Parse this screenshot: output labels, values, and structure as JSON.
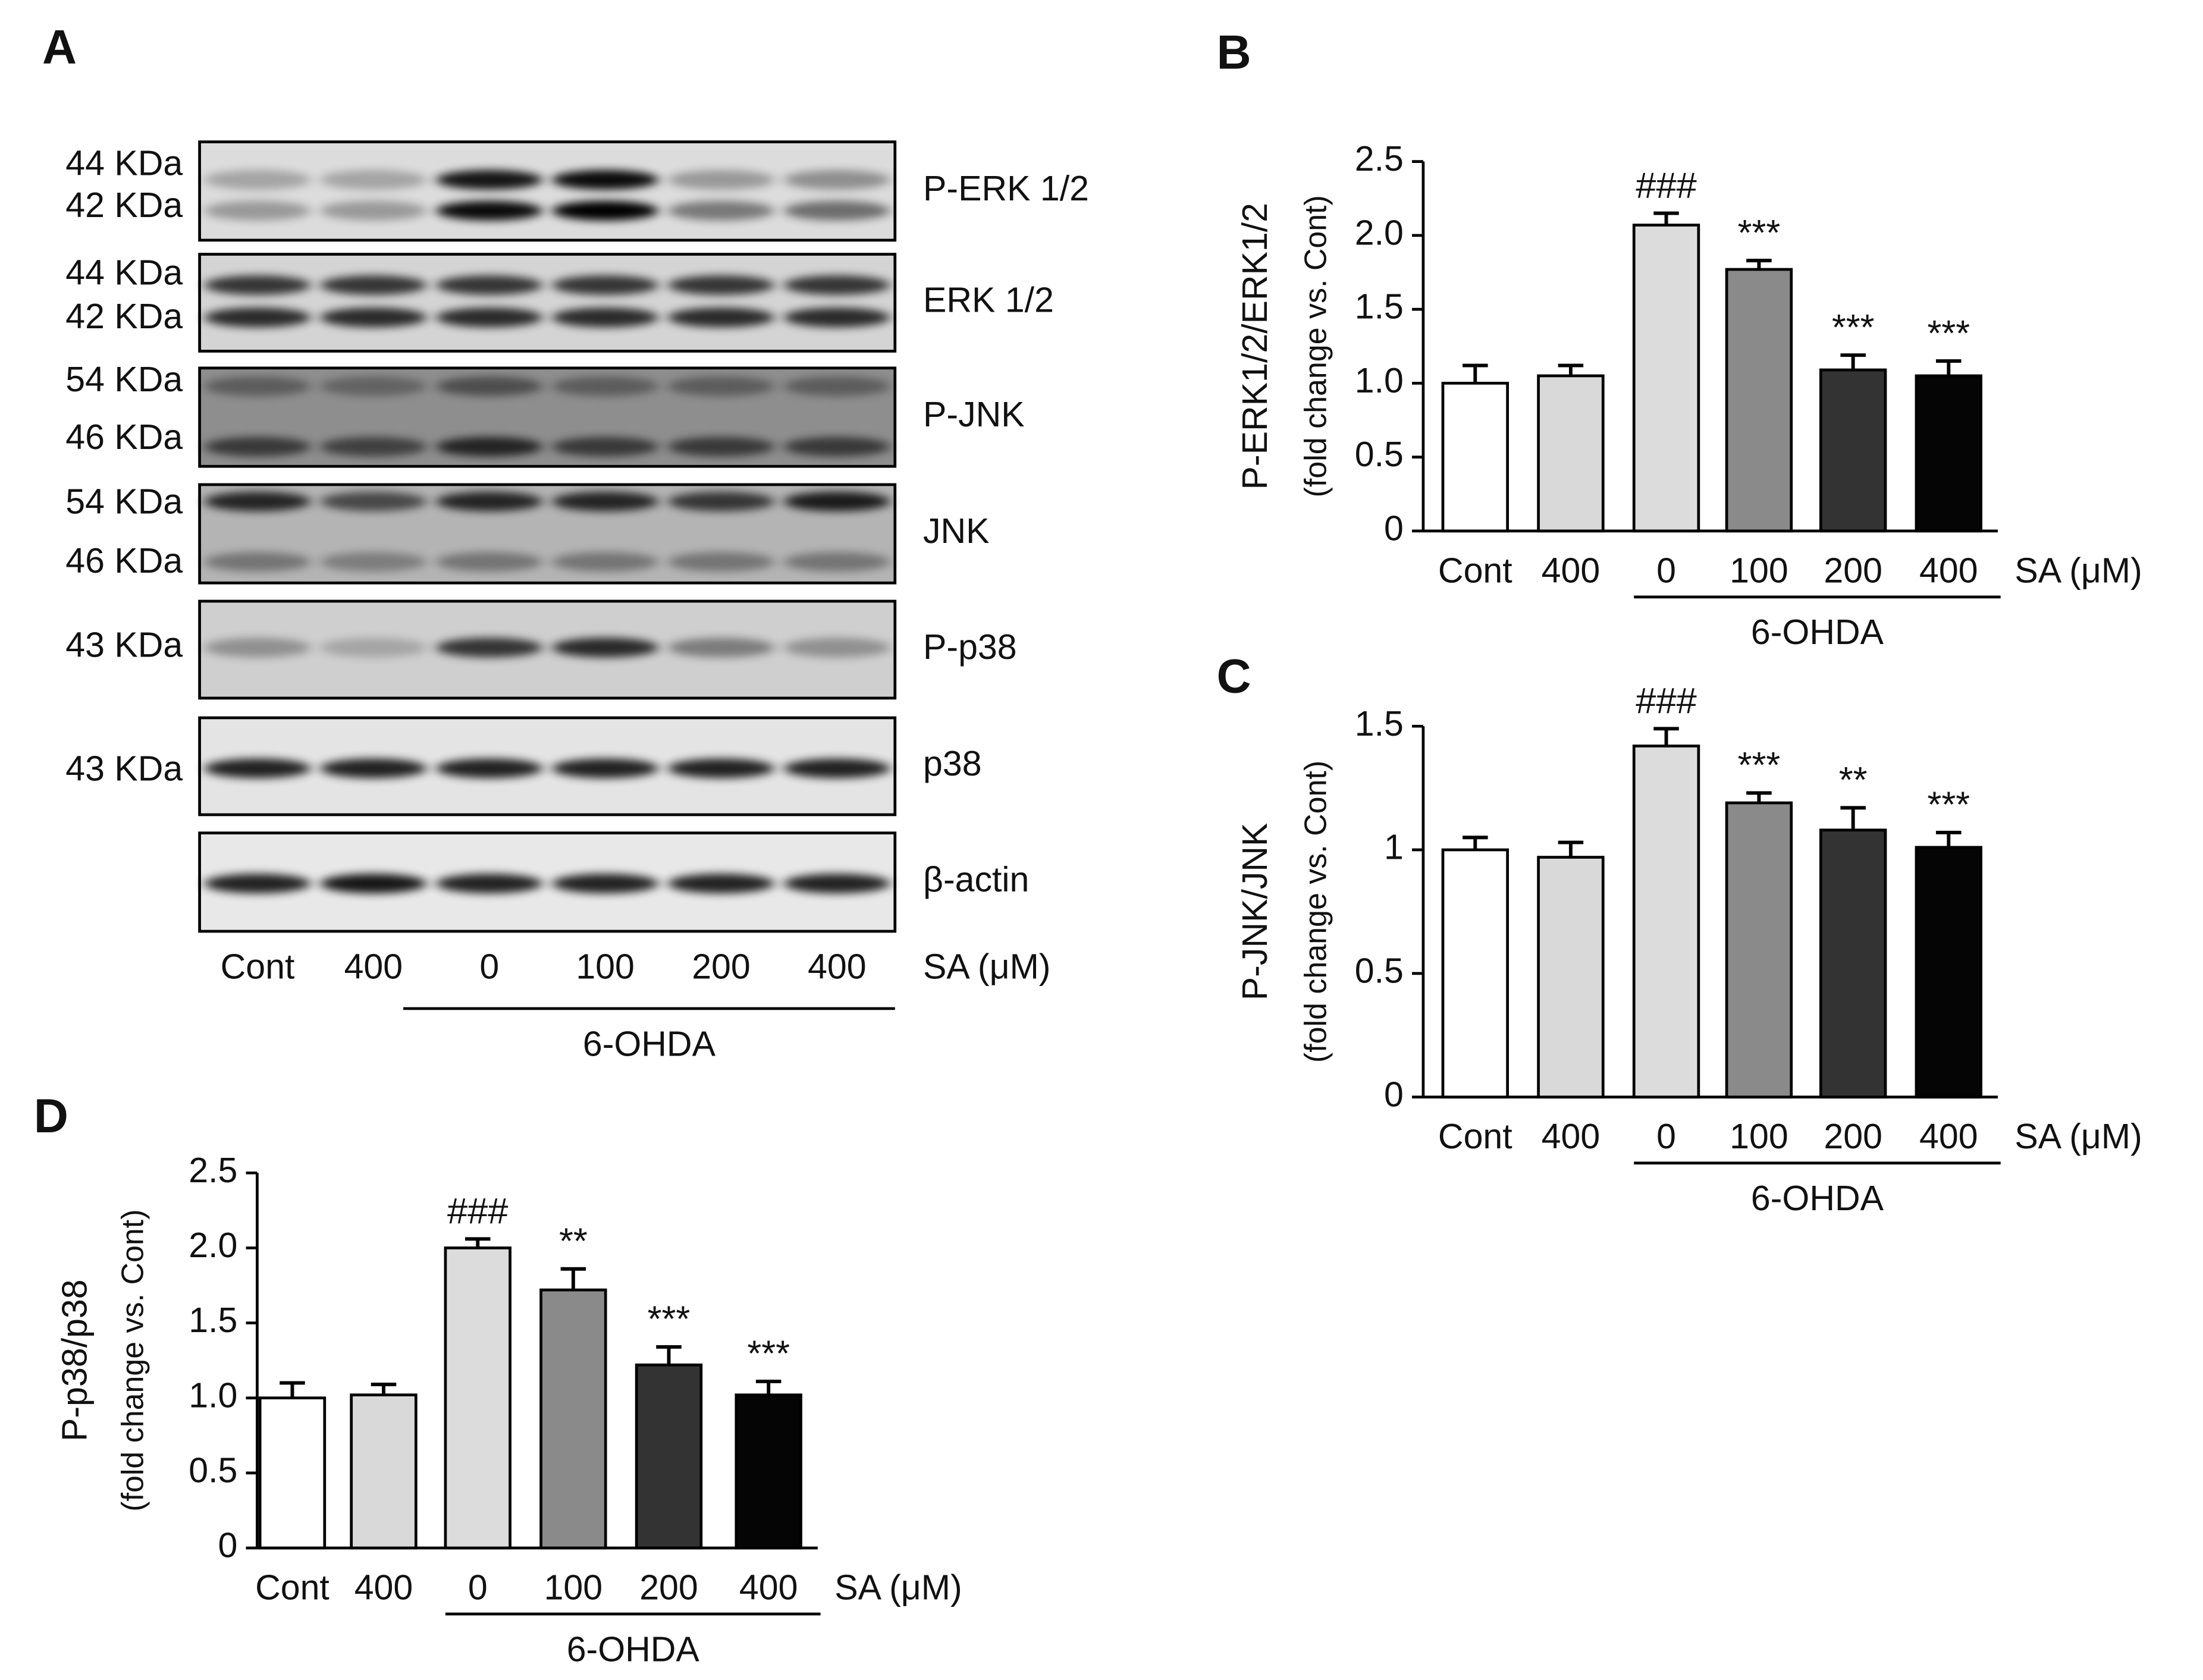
{
  "blot": {
    "panel_label": "A",
    "rows": [
      {
        "kda": [
          "44 KDa",
          "42 KDa"
        ],
        "label": "P-ERK 1/2"
      },
      {
        "kda": [
          "44 KDa",
          "42 KDa"
        ],
        "label": "ERK 1/2"
      },
      {
        "kda": [
          "54 KDa",
          "46 KDa"
        ],
        "label": "P-JNK"
      },
      {
        "kda": [
          "54 KDa",
          "46 KDa"
        ],
        "label": "JNK"
      },
      {
        "kda": [
          "43 KDa"
        ],
        "label": "P-p38"
      },
      {
        "kda": [
          "43 KDa"
        ],
        "label": "p38"
      },
      {
        "kda": [],
        "label": "β-actin"
      }
    ],
    "lanes": [
      "Cont",
      "400",
      "0",
      "100",
      "200",
      "400"
    ],
    "xlabel": "SA (μM)",
    "group_label": "6-OHDA"
  },
  "chart_data": [
    {
      "type": "bar",
      "panel_label": "B",
      "ylabel": [
        "P-ERK1/2/ERK1/2",
        "(fold change vs. Cont)"
      ],
      "categories": [
        "Cont",
        "400",
        "0",
        "100",
        "200",
        "400"
      ],
      "xlabel": "SA (μM)",
      "group_label": "6-OHDA",
      "values": [
        1.0,
        1.05,
        2.07,
        1.77,
        1.09,
        1.05
      ],
      "errors": [
        0.12,
        0.07,
        0.08,
        0.06,
        0.1,
        0.1
      ],
      "colors": [
        "#ffffff",
        "#d9d9d9",
        "#dcdcdc",
        "#8a8a8a",
        "#333333",
        "#050505"
      ],
      "bar_annotations": [
        null,
        null,
        "###",
        "***",
        "***",
        "***"
      ],
      "ylim": [
        0,
        2.5
      ],
      "yticks": [
        0,
        0.5,
        {
          "value": 1,
          "label": "1.0"
        },
        1.5,
        {
          "value": 2,
          "label": "2.0"
        },
        2.5
      ]
    },
    {
      "type": "bar",
      "panel_label": "C",
      "ylabel": [
        "P-JNK/JNK",
        "(fold change vs. Cont)"
      ],
      "categories": [
        "Cont",
        "400",
        "0",
        "100",
        "200",
        "400"
      ],
      "xlabel": "SA (μM)",
      "group_label": "6-OHDA",
      "values": [
        1.0,
        0.97,
        1.42,
        1.19,
        1.08,
        1.01
      ],
      "errors": [
        0.05,
        0.06,
        0.07,
        0.04,
        0.09,
        0.06
      ],
      "colors": [
        "#ffffff",
        "#d9d9d9",
        "#dcdcdc",
        "#8a8a8a",
        "#333333",
        "#050505"
      ],
      "bar_annotations": [
        null,
        null,
        "###",
        "***",
        "**",
        "***"
      ],
      "ylim": [
        0,
        1.5
      ],
      "yticks": [
        0,
        0.5,
        1,
        1.5
      ]
    },
    {
      "type": "bar",
      "panel_label": "D",
      "ylabel": [
        "P-p38/p38",
        "(fold change vs. Cont)"
      ],
      "categories": [
        "Cont",
        "400",
        "0",
        "100",
        "200",
        "400"
      ],
      "xlabel": "SA (μM)",
      "group_label": "6-OHDA",
      "values": [
        1.0,
        1.02,
        2.0,
        1.72,
        1.22,
        1.02
      ],
      "errors": [
        0.1,
        0.07,
        0.06,
        0.14,
        0.12,
        0.09
      ],
      "colors": [
        "#ffffff",
        "#d9d9d9",
        "#dcdcdc",
        "#8a8a8a",
        "#333333",
        "#050505"
      ],
      "bar_annotations": [
        null,
        null,
        "###",
        "**",
        "***",
        "***"
      ],
      "ylim": [
        0,
        2.5
      ],
      "yticks": [
        0,
        0.5,
        {
          "value": 1,
          "label": "1.0"
        },
        1.5,
        {
          "value": 2,
          "label": "2.0"
        },
        2.5
      ]
    }
  ]
}
